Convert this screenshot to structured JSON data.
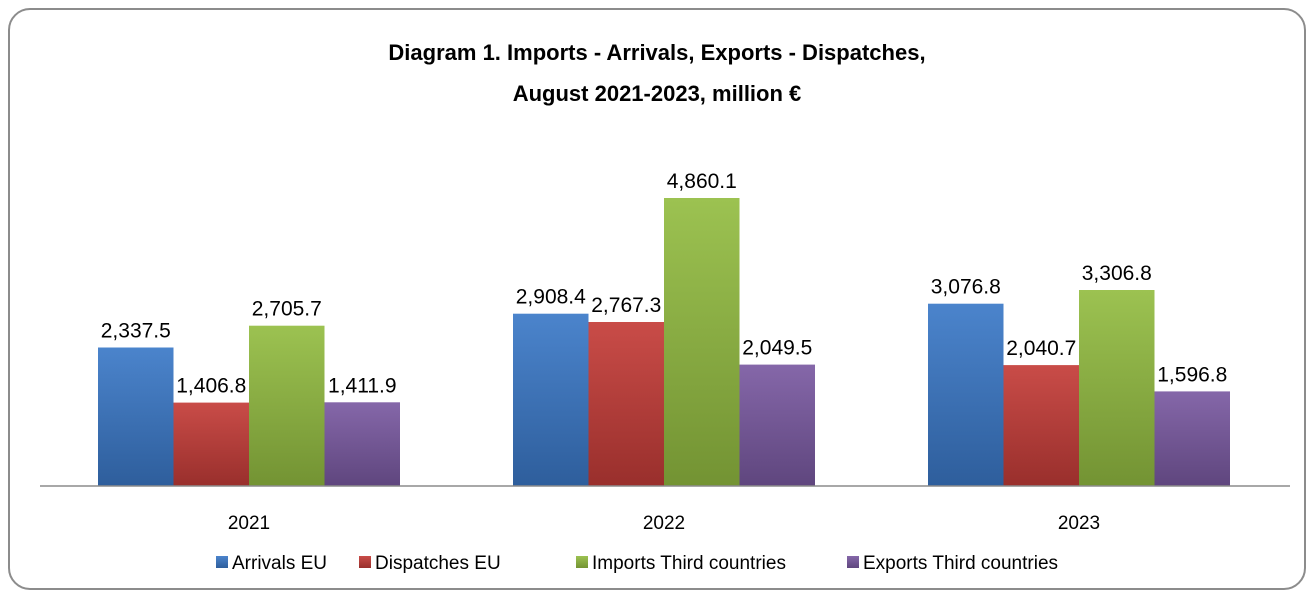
{
  "chart_data": {
    "type": "bar",
    "title": "Diagram 1. Imports - Arrivals, Exports - Dispatches,",
    "subtitle": "August 2021-2023,  million €",
    "categories": [
      "2021",
      "2022",
      "2023"
    ],
    "series": [
      {
        "name": "Arrivals EU",
        "color": "#3b79c8",
        "values": [
          2337.5,
          2908.4,
          3076.8
        ],
        "labels": [
          "2,337.5",
          "2,908.4",
          "3,076.8"
        ]
      },
      {
        "name": "Dispatches EU",
        "color": "#c43c38",
        "values": [
          1406.8,
          2767.3,
          2040.7
        ],
        "labels": [
          "1,406.8",
          "2,767.3",
          "2,040.7"
        ]
      },
      {
        "name": "Imports Third countries",
        "color": "#93bd42",
        "values": [
          2705.7,
          4860.1,
          3306.8
        ],
        "labels": [
          "2,705.7",
          "4,860.1",
          "3,306.8"
        ]
      },
      {
        "name": "Exports Third countries",
        "color": "#7a5aa2",
        "values": [
          1411.9,
          2049.5,
          1596.8
        ],
        "labels": [
          "1,411.9",
          "2,049.5",
          "1,596.8"
        ]
      }
    ],
    "xlabel": "",
    "ylabel": "",
    "ylim": [
      0,
      5000
    ],
    "grid": false,
    "legend": "bottom"
  }
}
